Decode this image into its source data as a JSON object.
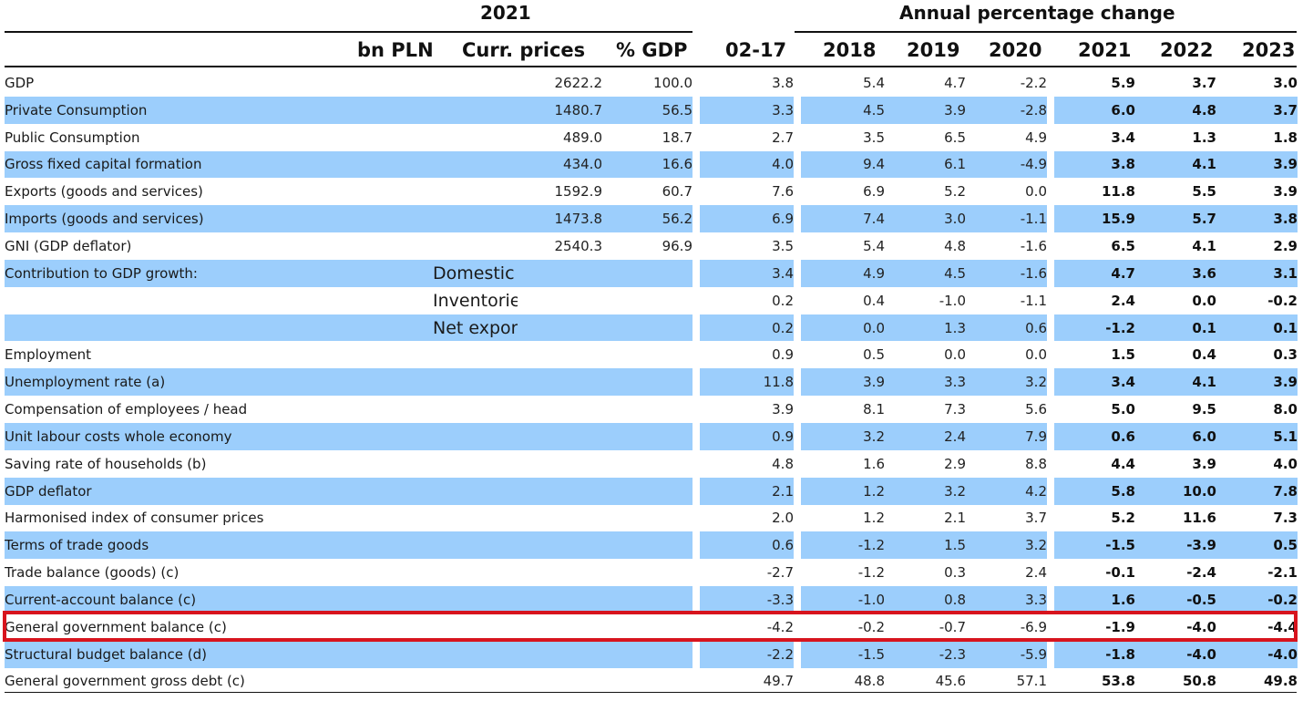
{
  "header": {
    "year_label": "2021",
    "annual_label": "Annual percentage change",
    "columns": {
      "bn_pln": "bn PLN",
      "curr_prices": "Curr. prices",
      "pct_gdp": "% GDP",
      "y0217": "02-17",
      "y2018": "2018",
      "y2019": "2019",
      "y2020": "2020",
      "y2021": "2021",
      "y2022": "2022",
      "y2023": "2023"
    }
  },
  "rows": [
    {
      "label": "GDP",
      "sub": "",
      "cp": "2622.2",
      "pg": "100.0",
      "v": [
        "3.8",
        "5.4",
        "4.7",
        "-2.2"
      ],
      "f": [
        "5.9",
        "3.7",
        "3.0"
      ]
    },
    {
      "label": "Private Consumption",
      "sub": "",
      "cp": "1480.7",
      "pg": "56.5",
      "v": [
        "3.3",
        "4.5",
        "3.9",
        "-2.8"
      ],
      "f": [
        "6.0",
        "4.8",
        "3.7"
      ]
    },
    {
      "label": "Public Consumption",
      "sub": "",
      "cp": "489.0",
      "pg": "18.7",
      "v": [
        "2.7",
        "3.5",
        "6.5",
        "4.9"
      ],
      "f": [
        "3.4",
        "1.3",
        "1.8"
      ]
    },
    {
      "label": "Gross fixed capital formation",
      "sub": "",
      "cp": "434.0",
      "pg": "16.6",
      "v": [
        "4.0",
        "9.4",
        "6.1",
        "-4.9"
      ],
      "f": [
        "3.8",
        "4.1",
        "3.9"
      ]
    },
    {
      "label": "Exports (goods and services)",
      "sub": "",
      "cp": "1592.9",
      "pg": "60.7",
      "v": [
        "7.6",
        "6.9",
        "5.2",
        "0.0"
      ],
      "f": [
        "11.8",
        "5.5",
        "3.9"
      ]
    },
    {
      "label": "Imports (goods and services)",
      "sub": "",
      "cp": "1473.8",
      "pg": "56.2",
      "v": [
        "6.9",
        "7.4",
        "3.0",
        "-1.1"
      ],
      "f": [
        "15.9",
        "5.7",
        "3.8"
      ]
    },
    {
      "label": "GNI (GDP deflator)",
      "sub": "",
      "cp": "2540.3",
      "pg": "96.9",
      "v": [
        "3.5",
        "5.4",
        "4.8",
        "-1.6"
      ],
      "f": [
        "6.5",
        "4.1",
        "2.9"
      ]
    },
    {
      "label": "Contribution to GDP growth:",
      "sub": "Domestic demand",
      "cp": "",
      "pg": "",
      "v": [
        "3.4",
        "4.9",
        "4.5",
        "-1.6"
      ],
      "f": [
        "4.7",
        "3.6",
        "3.1"
      ]
    },
    {
      "label": "",
      "sub": "Inventories",
      "cp": "",
      "pg": "",
      "v": [
        "0.2",
        "0.4",
        "-1.0",
        "-1.1"
      ],
      "f": [
        "2.4",
        "0.0",
        "-0.2"
      ]
    },
    {
      "label": "",
      "sub": "Net exports",
      "cp": "",
      "pg": "",
      "v": [
        "0.2",
        "0.0",
        "1.3",
        "0.6"
      ],
      "f": [
        "-1.2",
        "0.1",
        "0.1"
      ]
    },
    {
      "label": "Employment",
      "sub": "",
      "cp": "",
      "pg": "",
      "v": [
        "0.9",
        "0.5",
        "0.0",
        "0.0"
      ],
      "f": [
        "1.5",
        "0.4",
        "0.3"
      ]
    },
    {
      "label": "Unemployment rate (a)",
      "sub": "",
      "cp": "",
      "pg": "",
      "v": [
        "11.8",
        "3.9",
        "3.3",
        "3.2"
      ],
      "f": [
        "3.4",
        "4.1",
        "3.9"
      ]
    },
    {
      "label": "Compensation of employees / head",
      "sub": "",
      "cp": "",
      "pg": "",
      "v": [
        "3.9",
        "8.1",
        "7.3",
        "5.6"
      ],
      "f": [
        "5.0",
        "9.5",
        "8.0"
      ]
    },
    {
      "label": "Unit labour costs whole economy",
      "sub": "",
      "cp": "",
      "pg": "",
      "v": [
        "0.9",
        "3.2",
        "2.4",
        "7.9"
      ],
      "f": [
        "0.6",
        "6.0",
        "5.1"
      ]
    },
    {
      "label": "Saving rate of households (b)",
      "sub": "",
      "cp": "",
      "pg": "",
      "v": [
        "4.8",
        "1.6",
        "2.9",
        "8.8"
      ],
      "f": [
        "4.4",
        "3.9",
        "4.0"
      ]
    },
    {
      "label": "GDP deflator",
      "sub": "",
      "cp": "",
      "pg": "",
      "v": [
        "2.1",
        "1.2",
        "3.2",
        "4.2"
      ],
      "f": [
        "5.8",
        "10.0",
        "7.8"
      ]
    },
    {
      "label": "Harmonised index of consumer prices",
      "sub": "",
      "cp": "",
      "pg": "",
      "v": [
        "2.0",
        "1.2",
        "2.1",
        "3.7"
      ],
      "f": [
        "5.2",
        "11.6",
        "7.3"
      ]
    },
    {
      "label": "Terms of trade goods",
      "sub": "",
      "cp": "",
      "pg": "",
      "v": [
        "0.6",
        "-1.2",
        "1.5",
        "3.2"
      ],
      "f": [
        "-1.5",
        "-3.9",
        "0.5"
      ]
    },
    {
      "label": "Trade balance (goods) (c)",
      "sub": "",
      "cp": "",
      "pg": "",
      "v": [
        "-2.7",
        "-1.2",
        "0.3",
        "2.4"
      ],
      "f": [
        "-0.1",
        "-2.4",
        "-2.1"
      ]
    },
    {
      "label": "Current-account balance (c)",
      "sub": "",
      "cp": "",
      "pg": "",
      "v": [
        "-3.3",
        "-1.0",
        "0.8",
        "3.3"
      ],
      "f": [
        "1.6",
        "-0.5",
        "-0.2"
      ]
    },
    {
      "label": "General government balance (c)",
      "sub": "",
      "cp": "",
      "pg": "",
      "v": [
        "-4.2",
        "-0.2",
        "-0.7",
        "-6.9"
      ],
      "f": [
        "-1.9",
        "-4.0",
        "-4.4"
      ]
    },
    {
      "label": "Structural budget balance (d)",
      "sub": "",
      "cp": "",
      "pg": "",
      "v": [
        "-2.2",
        "-1.5",
        "-2.3",
        "-5.9"
      ],
      "f": [
        "-1.8",
        "-4.0",
        "-4.0"
      ]
    },
    {
      "label": "General government gross debt (c)",
      "sub": "",
      "cp": "",
      "pg": "",
      "v": [
        "49.7",
        "48.8",
        "45.6",
        "57.1"
      ],
      "f": [
        "53.8",
        "50.8",
        "49.8"
      ]
    }
  ],
  "highlight_row_label": "General government balance (c)",
  "colors": {
    "shade": "#9ccefc",
    "highlight": "#d7141e"
  }
}
